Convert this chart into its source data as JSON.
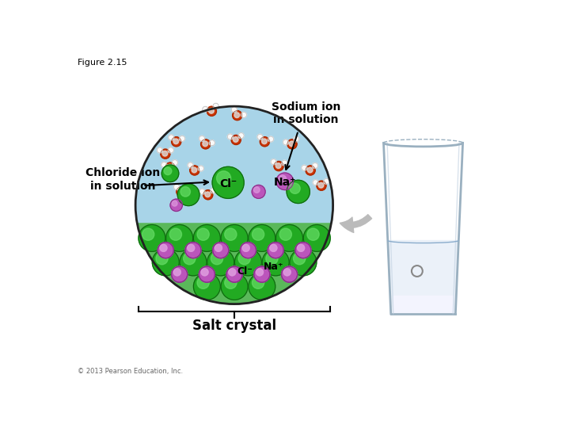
{
  "figure_label": "Figure 2.15",
  "title_chloride": "Chloride ion\nin solution",
  "title_sodium": "Sodium ion\nin solution",
  "label_cl_top": "Cl⁻",
  "label_na_top": "Na⁺",
  "label_cl_bot": "Cl⁻",
  "label_na_bot": "Na⁺",
  "label_salt": "Salt crystal",
  "copyright": "© 2013 Pearson Education, Inc.",
  "bg_color": "#ffffff",
  "solution_blue": "#a8d4e8",
  "crystal_green": "#5ab85a",
  "green_ion_main": "#22aa22",
  "green_ion_light": "#66dd66",
  "purple_ion_main": "#bb55bb",
  "purple_ion_light": "#dd99dd",
  "water_red": "#cc3300",
  "water_white": "#e8e8e8"
}
